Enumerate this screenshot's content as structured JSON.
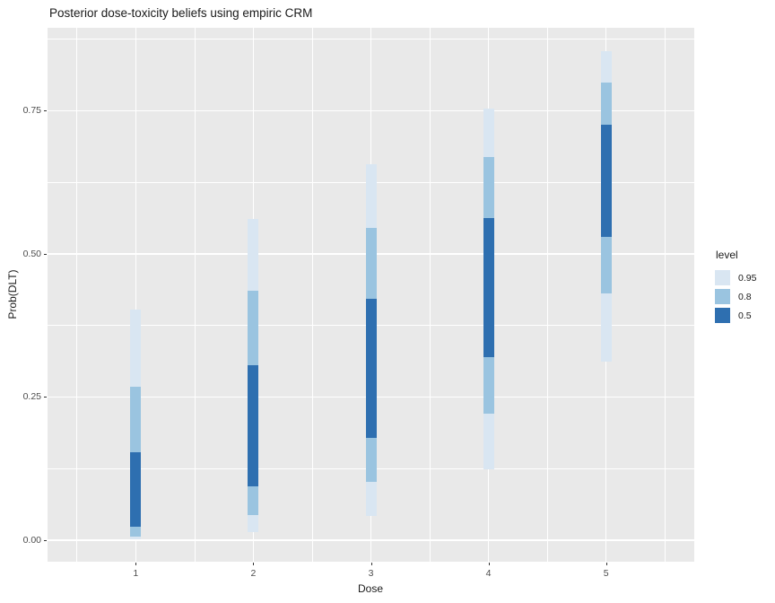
{
  "chart_data": {
    "type": "bar",
    "subtype": "nested-credible-interval-bars",
    "title": "Posterior dose-toxicity beliefs using empiric CRM",
    "xlabel": "Dose",
    "ylabel": "Prob(DLT)",
    "x": [
      1,
      2,
      3,
      4,
      5
    ],
    "xticklabels": [
      "1",
      "2",
      "3",
      "4",
      "5"
    ],
    "x_minor": [
      0.5,
      1.5,
      2.5,
      3.5,
      4.5,
      5.5
    ],
    "xlim": [
      0.25,
      5.75
    ],
    "yticks": [
      0.0,
      0.25,
      0.5,
      0.75
    ],
    "yticklabels": [
      "0.00",
      "0.25",
      "0.50",
      "0.75"
    ],
    "y_minor": [
      0.125,
      0.375,
      0.625,
      0.875
    ],
    "ylim": [
      -0.038,
      0.895
    ],
    "grid": true,
    "panel_background": "#e9e9e9",
    "gridline_color": "#ffffff",
    "legend": {
      "title": "level",
      "position": "right",
      "entries": [
        {
          "label": "0.95",
          "key": "p95",
          "color": "#d9e6f2"
        },
        {
          "label": "0.8",
          "key": "p80",
          "color": "#9ac4e0"
        },
        {
          "label": "0.5",
          "key": "p50",
          "color": "#2e6fb0"
        }
      ]
    },
    "intervals": [
      {
        "dose": 1,
        "p95": [
          0.001,
          0.402
        ],
        "p80": [
          0.006,
          0.268
        ],
        "p50": [
          0.023,
          0.153
        ]
      },
      {
        "dose": 2,
        "p95": [
          0.014,
          0.561
        ],
        "p80": [
          0.044,
          0.435
        ],
        "p50": [
          0.094,
          0.305
        ]
      },
      {
        "dose": 3,
        "p95": [
          0.042,
          0.657
        ],
        "p80": [
          0.102,
          0.546
        ],
        "p50": [
          0.179,
          0.421
        ]
      },
      {
        "dose": 4,
        "p95": [
          0.123,
          0.754
        ],
        "p80": [
          0.221,
          0.669
        ],
        "p50": [
          0.32,
          0.562
        ]
      },
      {
        "dose": 5,
        "p95": [
          0.311,
          0.855
        ],
        "p80": [
          0.431,
          0.8
        ],
        "p50": [
          0.53,
          0.726
        ]
      }
    ]
  }
}
